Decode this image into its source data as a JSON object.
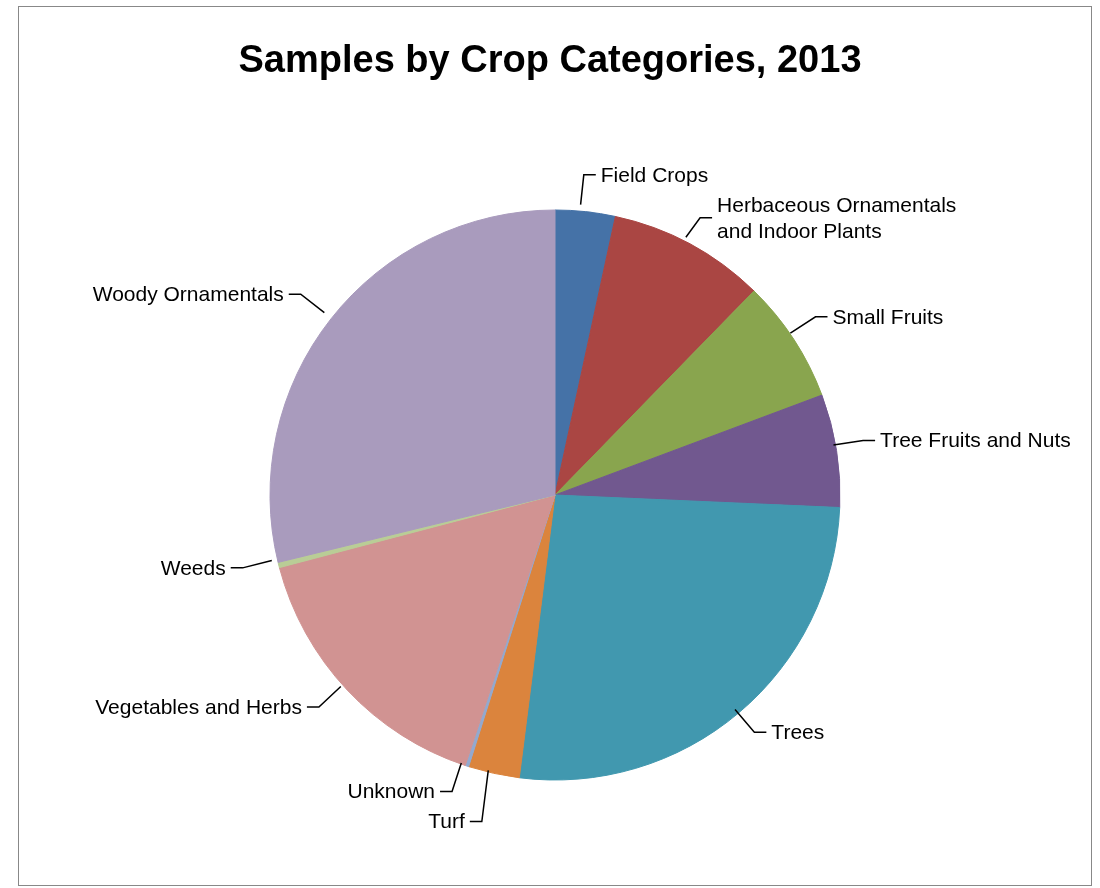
{
  "chart_data": {
    "type": "pie",
    "title": "Samples by Crop Categories, 2013",
    "categories": [
      "Field Crops",
      "Herbaceous Ornamentals and Indoor Plants",
      "Small Fruits",
      "Tree Fruits and Nuts",
      "Trees",
      "Turf",
      "Unknown",
      "Vegetables and Herbs",
      "Weeds",
      "Woody Ornamentals"
    ],
    "values": [
      3.4,
      8.9,
      7,
      6.4,
      26.3,
      2.9,
      0.2,
      15.8,
      0.3,
      28.8
    ],
    "colors": [
      "#4572a7",
      "#aa4643",
      "#89a54e",
      "#71588f",
      "#4198af",
      "#db843d",
      "#93a9cf",
      "#d19392",
      "#b9cd96",
      "#a99bbd"
    ],
    "legend": false
  }
}
